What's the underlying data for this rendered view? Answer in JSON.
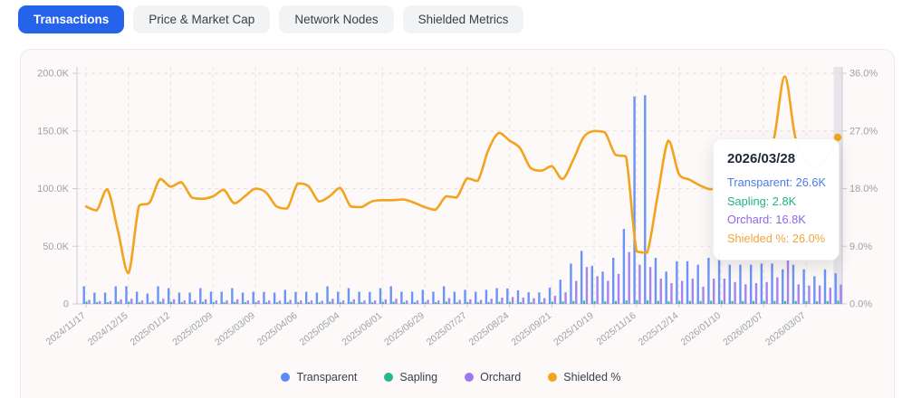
{
  "tabs": [
    {
      "label": "Transactions",
      "active": true
    },
    {
      "label": "Price & Market Cap",
      "active": false
    },
    {
      "label": "Network Nodes",
      "active": false
    },
    {
      "label": "Shielded Metrics",
      "active": false
    }
  ],
  "tooltip": {
    "date": "2026/03/28",
    "rows": [
      {
        "text": "Transparent: 26.6K",
        "color": "#4a7ce8"
      },
      {
        "text": "Sapling: 2.8K",
        "color": "#22b288"
      },
      {
        "text": "Orchard: 16.8K",
        "color": "#8f68e8"
      },
      {
        "text": "Shielded %: 26.0%",
        "color": "#f2a33c"
      }
    ]
  },
  "colors": {
    "transparent_bar": "#5d8bf4",
    "sapling_bar": "#25b78e",
    "orchard_bar": "#9e79ed",
    "shielded_line": "#f2a41e",
    "active_tab": "#2563eb",
    "grid": "#e8dfdf",
    "axis": "#c9cdd6",
    "tick_text": "#9aa2ac",
    "highlight_band": "#d6d6e0"
  },
  "chart_data": {
    "type": "mixed-bar-line",
    "left_axis": {
      "ticks": [
        "0",
        "50.0K",
        "100.0K",
        "150.0K",
        "200.0K"
      ],
      "max_k": 200,
      "unit": "K"
    },
    "right_axis": {
      "ticks": [
        "0.0%",
        "9.0%",
        "18.0%",
        "27.0%",
        "36.0%"
      ],
      "max_pct": 36,
      "unit": "%"
    },
    "x_label_every": 4,
    "grid": true,
    "legend_position": "bottom",
    "x": [
      "2024/11/17",
      "2024/11/24",
      "2024/12/01",
      "2024/12/08",
      "2024/12/15",
      "2024/12/22",
      "2024/12/29",
      "2025/01/05",
      "2025/01/12",
      "2025/01/19",
      "2025/01/26",
      "2025/02/02",
      "2025/02/09",
      "2025/02/16",
      "2025/02/23",
      "2025/03/02",
      "2025/03/09",
      "2025/03/16",
      "2025/03/23",
      "2025/03/30",
      "2025/04/06",
      "2025/04/13",
      "2025/04/20",
      "2025/04/27",
      "2025/05/04",
      "2025/05/11",
      "2025/05/18",
      "2025/05/25",
      "2025/06/01",
      "2025/06/08",
      "2025/06/15",
      "2025/06/22",
      "2025/06/29",
      "2025/07/06",
      "2025/07/13",
      "2025/07/20",
      "2025/07/27",
      "2025/08/03",
      "2025/08/10",
      "2025/08/17",
      "2025/08/24",
      "2025/08/31",
      "2025/09/07",
      "2025/09/14",
      "2025/09/21",
      "2025/09/28",
      "2025/10/05",
      "2025/10/12",
      "2025/10/19",
      "2025/10/26",
      "2025/11/02",
      "2025/11/09",
      "2025/11/16",
      "2025/11/23",
      "2025/11/30",
      "2025/12/07",
      "2025/12/14",
      "2025/12/21",
      "2025/12/28",
      "2026/01/04",
      "2026/01/10",
      "2026/01/17",
      "2026/01/24",
      "2026/01/31",
      "2026/02/07",
      "2026/02/14",
      "2026/02/21",
      "2026/02/28",
      "2026/03/07",
      "2026/03/14",
      "2026/03/21",
      "2026/03/28"
    ],
    "series": [
      {
        "name": "Transparent",
        "type": "bar",
        "axis": "left",
        "color": "#5d8bf4",
        "unit": "K",
        "values": [
          15.3,
          9.8,
          9.8,
          15.3,
          15.3,
          10.6,
          9.0,
          15.3,
          13.7,
          9.8,
          9.8,
          13.7,
          10.6,
          10.6,
          13.7,
          9.8,
          10.6,
          10.4,
          9.8,
          12.2,
          10.4,
          10.6,
          9.8,
          15.3,
          10.6,
          13.7,
          10.6,
          10.4,
          13.7,
          15.3,
          10.6,
          10.6,
          12.2,
          10.6,
          15.3,
          10.6,
          12.2,
          10.6,
          12.2,
          13.7,
          13.4,
          11.8,
          10.2,
          10.0,
          14.2,
          21.0,
          35.0,
          46.0,
          33.0,
          28.0,
          40.0,
          65.0,
          180.0,
          181.0,
          40.0,
          28.0,
          37.0,
          37.0,
          34.0,
          40.0,
          44.0,
          34.0,
          34.0,
          34.0,
          35.0,
          35.0,
          30.0,
          34.0,
          30.0,
          24.0,
          30.0,
          26.6
        ]
      },
      {
        "name": "Sapling",
        "type": "bar",
        "axis": "left",
        "color": "#25b78e",
        "unit": "K",
        "values": [
          2.0,
          1.5,
          1.5,
          2.0,
          2.0,
          1.5,
          1.2,
          2.0,
          1.8,
          1.5,
          1.5,
          1.8,
          1.5,
          1.5,
          1.8,
          1.5,
          1.5,
          1.5,
          1.4,
          1.6,
          1.5,
          1.5,
          1.4,
          2.0,
          1.5,
          1.8,
          1.5,
          1.5,
          1.8,
          2.0,
          1.5,
          1.5,
          1.6,
          1.5,
          2.0,
          1.5,
          1.6,
          1.5,
          1.6,
          1.8,
          1.8,
          1.6,
          1.5,
          1.5,
          1.9,
          2.2,
          2.5,
          2.8,
          2.4,
          2.2,
          2.5,
          3.0,
          3.2,
          3.0,
          2.6,
          2.3,
          2.6,
          2.6,
          2.5,
          2.7,
          2.8,
          2.5,
          2.5,
          2.5,
          2.6,
          2.6,
          2.4,
          2.5,
          2.4,
          2.3,
          2.5,
          2.8
        ]
      },
      {
        "name": "Orchard",
        "type": "bar",
        "axis": "left",
        "color": "#9e79ed",
        "unit": "K",
        "values": [
          3.5,
          2.5,
          2.5,
          4.0,
          4.5,
          3.0,
          2.5,
          4.5,
          4.0,
          3.0,
          3.0,
          4.0,
          3.0,
          3.0,
          4.0,
          3.0,
          3.0,
          3.0,
          2.8,
          3.5,
          3.0,
          3.0,
          2.8,
          4.5,
          3.0,
          4.0,
          3.0,
          3.0,
          4.0,
          4.5,
          3.0,
          3.0,
          3.5,
          3.0,
          5.0,
          3.5,
          4.0,
          3.5,
          4.5,
          5.5,
          6.0,
          5.5,
          5.0,
          5.0,
          7.0,
          10.0,
          20.0,
          32.0,
          24.0,
          20.0,
          26.0,
          45.0,
          34.0,
          32.0,
          22.0,
          18.0,
          20.0,
          22.0,
          15.0,
          22.0,
          22.0,
          19.0,
          17.0,
          18.0,
          19.0,
          23.0,
          40.0,
          17.0,
          16.0,
          16.0,
          14.0,
          16.8
        ]
      },
      {
        "name": "Shielded %",
        "type": "line",
        "axis": "right",
        "color": "#f2a41e",
        "unit": "%",
        "values": [
          15.2,
          14.6,
          17.9,
          11.5,
          4.8,
          15.3,
          15.8,
          19.5,
          18.3,
          19.0,
          16.6,
          16.4,
          16.8,
          17.8,
          15.7,
          16.8,
          18.0,
          17.4,
          15.2,
          14.9,
          18.8,
          18.4,
          16.0,
          16.8,
          18.1,
          15.2,
          15.1,
          16.0,
          16.2,
          16.2,
          16.3,
          15.8,
          15.1,
          14.7,
          16.8,
          16.6,
          19.6,
          19.2,
          24.0,
          26.7,
          25.5,
          24.3,
          21.2,
          20.8,
          21.5,
          19.5,
          22.4,
          26.0,
          27.0,
          26.8,
          23.3,
          23.0,
          8.2,
          8.0,
          17.0,
          25.5,
          20.3,
          19.4,
          18.5,
          17.9,
          18.5,
          19.5,
          20.0,
          20.5,
          21.5,
          26.0,
          35.5,
          26.0,
          22.5,
          21.0,
          23.0,
          26.0
        ]
      }
    ],
    "highlighted_x": "2026/03/28"
  }
}
